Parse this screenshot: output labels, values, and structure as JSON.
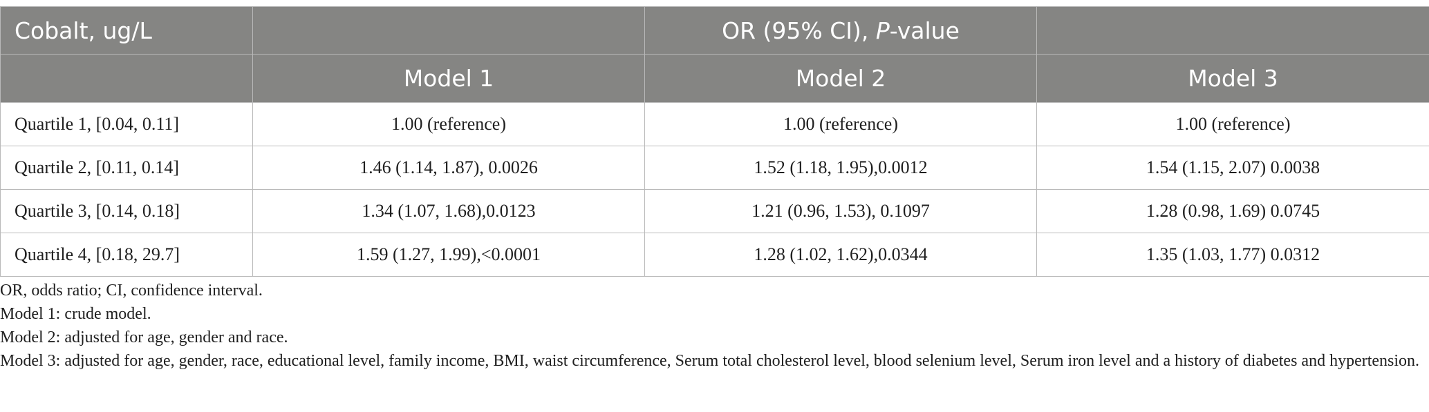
{
  "table": {
    "stub_header": "Cobalt, ug/L",
    "group_header": {
      "prefix": "OR (95% CI), ",
      "italic": "P",
      "suffix": "-value"
    },
    "models": [
      "Model 1",
      "Model 2",
      "Model 3"
    ],
    "rows": [
      {
        "label": "Quartile 1, [0.04, 0.11]",
        "m1": "1.00 (reference)",
        "m2": "1.00 (reference)",
        "m3": "1.00 (reference)"
      },
      {
        "label": "Quartile 2, [0.11, 0.14]",
        "m1": "1.46 (1.14, 1.87), 0.0026",
        "m2": "1.52 (1.18, 1.95),0.0012",
        "m3": "1.54 (1.15, 2.07) 0.0038"
      },
      {
        "label": "Quartile 3, [0.14, 0.18]",
        "m1": "1.34 (1.07, 1.68),0.0123",
        "m2": "1.21 (0.96, 1.53), 0.1097",
        "m3": "1.28 (0.98, 1.69) 0.0745"
      },
      {
        "label": "Quartile 4, [0.18, 29.7]",
        "m1": "1.59 (1.27, 1.99),<0.0001",
        "m2": "1.28 (1.02, 1.62),0.0344",
        "m3": "1.35 (1.03, 1.77) 0.0312"
      }
    ]
  },
  "notes": [
    "OR, odds ratio; CI, confidence interval.",
    "Model 1: crude model.",
    "Model 2: adjusted for age, gender and race.",
    "Model 3: adjusted for age, gender, race, educational level, family income, BMI, waist circumference, Serum total cholesterol level, blood selenium level, Serum iron level and a history of diabetes and hypertension."
  ]
}
